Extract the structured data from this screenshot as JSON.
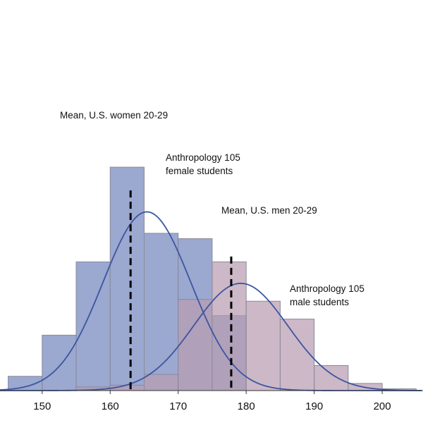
{
  "chart_data": {
    "type": "bar",
    "title": "",
    "xlabel": "",
    "ylabel": "",
    "xlim": [
      143.8,
      206
    ],
    "ylim": [
      0,
      0.128
    ],
    "x_ticks": [
      {
        "value": 150,
        "label": "150"
      },
      {
        "value": 160,
        "label": "160"
      },
      {
        "value": 170,
        "label": "170"
      },
      {
        "value": 180,
        "label": "180"
      },
      {
        "value": 190,
        "label": "190"
      },
      {
        "value": 200,
        "label": "200"
      }
    ],
    "grid": false,
    "series": [
      {
        "kind": "histogram",
        "color": "#7f8fc2",
        "bins": [
          {
            "x0": 145,
            "x1": 150,
            "value": 0.008
          },
          {
            "x0": 150,
            "x1": 155,
            "value": 0.031
          },
          {
            "x0": 155,
            "x1": 160,
            "value": 0.072
          },
          {
            "x0": 160,
            "x1": 165,
            "value": 0.125
          },
          {
            "x0": 165,
            "x1": 170,
            "value": 0.088
          },
          {
            "x0": 170,
            "x1": 175,
            "value": 0.085
          },
          {
            "x0": 175,
            "x1": 180,
            "value": 0.042
          }
        ]
      },
      {
        "kind": "histogram",
        "color": "#b89db2",
        "bins": [
          {
            "x0": 155,
            "x1": 160,
            "value": 0.002
          },
          {
            "x0": 160,
            "x1": 165,
            "value": 0.003
          },
          {
            "x0": 165,
            "x1": 170,
            "value": 0.009
          },
          {
            "x0": 170,
            "x1": 175,
            "value": 0.051
          },
          {
            "x0": 175,
            "x1": 180,
            "value": 0.072
          },
          {
            "x0": 180,
            "x1": 185,
            "value": 0.05
          },
          {
            "x0": 185,
            "x1": 190,
            "value": 0.04
          },
          {
            "x0": 190,
            "x1": 195,
            "value": 0.014
          },
          {
            "x0": 195,
            "x1": 200,
            "value": 0.004
          },
          {
            "x0": 200,
            "x1": 205,
            "value": 0.001
          }
        ]
      },
      {
        "kind": "normal-curve",
        "color": "#3b55a0",
        "mean": 165.4,
        "sd": 6.45,
        "peak": 0.1,
        "label_lines": [
          "Anthropology 105",
          "female students"
        ]
      },
      {
        "kind": "normal-curve",
        "color": "#3b55a0",
        "mean": 179.2,
        "sd": 6.9,
        "peak": 0.06,
        "label_lines": [
          "Anthropology 105",
          "male students"
        ]
      }
    ],
    "reference_lines": [
      {
        "x": 163,
        "ymax": 0.112,
        "label": "Mean, U.S. women 20-29"
      },
      {
        "x": 177.8,
        "ymax": 0.075,
        "label": "Mean, U.S. men 20-29"
      }
    ]
  }
}
